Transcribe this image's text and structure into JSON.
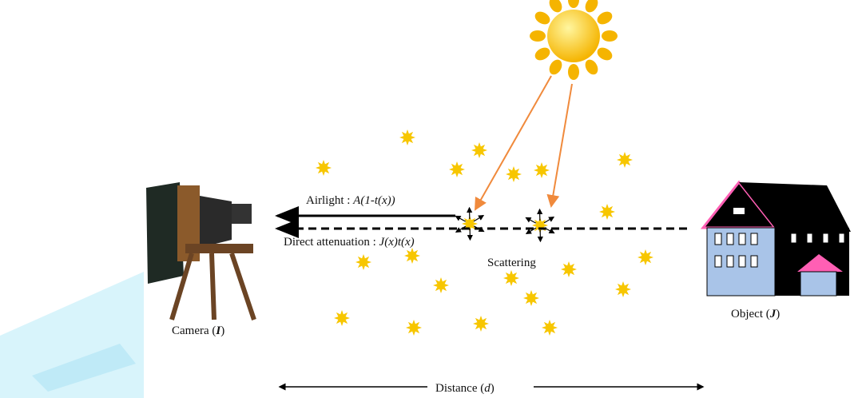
{
  "labels": {
    "airlight": {
      "text": "Airlight :",
      "formula": "A(1-t(x))"
    },
    "direct": {
      "text": "Direct attenuation :",
      "formula": "J(x)t(x)"
    },
    "scattering": "Scattering",
    "camera": {
      "text": "Camera (",
      "symbol": "I",
      "close": ")"
    },
    "object": {
      "text": "Object (",
      "symbol": "J",
      "close": ")"
    },
    "distance": {
      "text": "Distance (",
      "symbol": "d",
      "close": ")"
    }
  }
}
